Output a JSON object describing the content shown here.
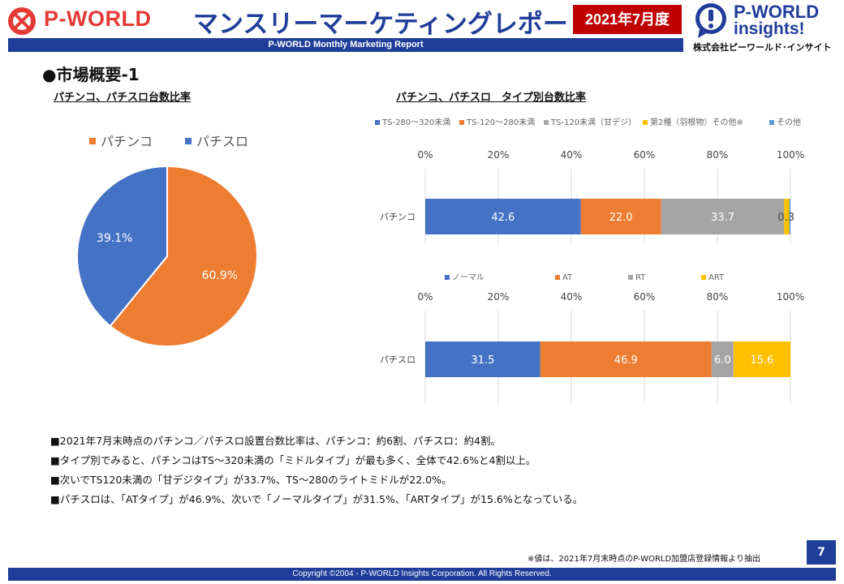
{
  "header": {
    "logo_left_text": "P-WORLD",
    "title": "マンスリーマーケティングレポート",
    "date_badge": "2021年7月度",
    "logo_right_line1": "P-WORLD",
    "logo_right_line2": "insights!",
    "logo_right_company": "株式会社ピーワールド･インサイト",
    "subtitle": "P-WORLD Monthly Marketing Report"
  },
  "section_title": "●市場概要-1",
  "chart_data": [
    {
      "type": "pie",
      "title": "パチンコ、パチスロ台数比率",
      "labels": [
        "パチンコ",
        "パチスロ"
      ],
      "values": [
        60.9,
        39.1
      ],
      "value_labels": [
        "60.9%",
        "39.1%"
      ],
      "colors": [
        "#ed7d31",
        "#4472c4"
      ],
      "legend": "top"
    },
    {
      "type": "bar",
      "orientation": "horizontal",
      "stacked": "percent",
      "title": "パチンコ、パチスロ　タイプ別台数比率",
      "category": "パチンコ",
      "series": [
        {
          "name": "TS-280～320未満",
          "values": [
            42.6
          ],
          "label": "42.6",
          "color": "#4472c4"
        },
        {
          "name": "TS-120～280未満",
          "values": [
            22.0
          ],
          "label": "22.0",
          "color": "#ed7d31"
        },
        {
          "name": "TS-120未満（甘デジ）",
          "values": [
            33.7
          ],
          "label": "33.7",
          "color": "#a5a5a5"
        },
        {
          "name": "第2種（羽根物）その他※",
          "values": [
            1.4
          ],
          "label": "",
          "color": "#ffc000"
        },
        {
          "name": "その他",
          "values": [
            0.3
          ],
          "label": "0.3",
          "color": "#5b9bd5"
        }
      ],
      "xticks": [
        "0%",
        "20%",
        "40%",
        "60%",
        "80%",
        "100%"
      ],
      "xlim": [
        0,
        100
      ],
      "grid": true,
      "legend": "top"
    },
    {
      "type": "bar",
      "orientation": "horizontal",
      "stacked": "percent",
      "category": "パチスロ",
      "series": [
        {
          "name": "ノーマル",
          "values": [
            31.5
          ],
          "label": "31.5",
          "color": "#4472c4"
        },
        {
          "name": "AT",
          "values": [
            46.9
          ],
          "label": "46.9",
          "color": "#ed7d31"
        },
        {
          "name": "RT",
          "values": [
            6.0
          ],
          "label": "6.0",
          "color": "#a5a5a5"
        },
        {
          "name": "ART",
          "values": [
            15.6
          ],
          "label": "15.6",
          "color": "#ffc000"
        }
      ],
      "xticks": [
        "0%",
        "20%",
        "40%",
        "60%",
        "80%",
        "100%"
      ],
      "xlim": [
        0,
        100
      ],
      "grid": true,
      "legend": "top"
    }
  ],
  "summary": [
    "■2021年7月末時点のパチンコ／パチスロ設置台数比率は、パチンコ：約6割、パチスロ：約4割。",
    "■タイプ別でみると、パチンコはTS～320未満の「ミドルタイプ」が最も多く、全体で42.6%と4割以上。",
    "■次いでTS120未満の「甘デジタイプ」が33.7%、TS～280のライトミドルが22.0%。",
    "■パチスロは、「ATタイプ」が46.9%、次いで「ノーマルタイプ」が31.5%、「ARTタイプ」が15.6%となっている。"
  ],
  "footnote": "※値は、2021年7月末時点のP-WORLD加盟店登録情報より抽出",
  "page_number": "7",
  "footer": "Copyright ©2004 -  P-WORLD Insights Corporation. All Rights Reserved."
}
